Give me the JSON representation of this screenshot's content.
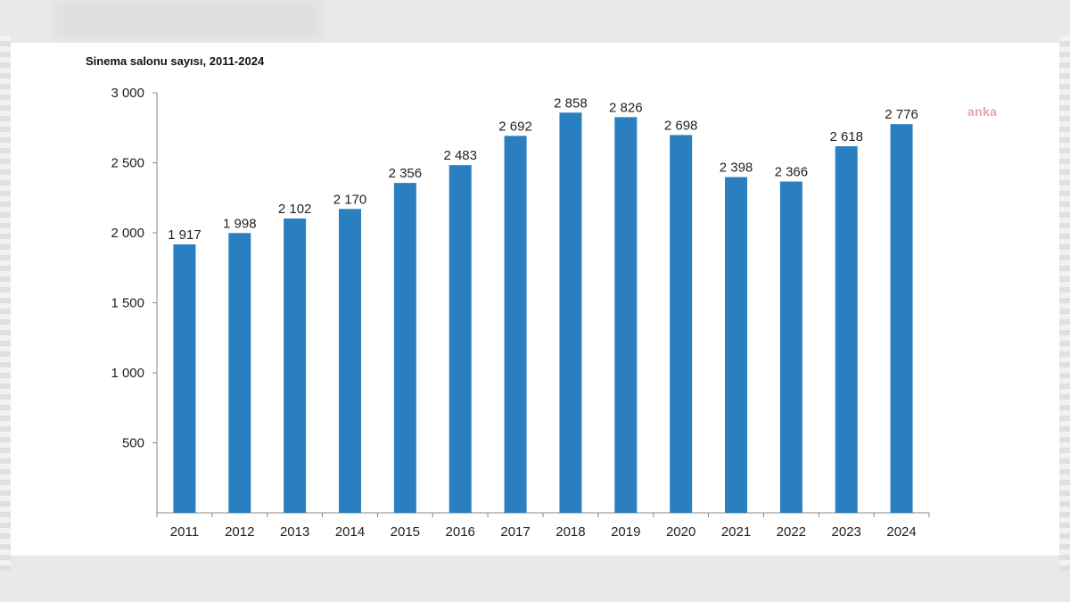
{
  "watermark": "anka",
  "chart_data": {
    "type": "bar",
    "title": "Sinema salonu sayısı, 2011-2024",
    "categories": [
      "2011",
      "2012",
      "2013",
      "2014",
      "2015",
      "2016",
      "2017",
      "2018",
      "2019",
      "2020",
      "2021",
      "2022",
      "2023",
      "2024"
    ],
    "values": [
      1917,
      1998,
      2102,
      2170,
      2356,
      2483,
      2692,
      2858,
      2826,
      2698,
      2398,
      2366,
      2618,
      2776
    ],
    "value_labels": [
      "1 917",
      "1 998",
      "2 102",
      "2 170",
      "2 356",
      "2 483",
      "2 692",
      "2 858",
      "2 826",
      "2 698",
      "2 398",
      "2 366",
      "2 618",
      "2 776"
    ],
    "yticks": [
      500,
      1000,
      1500,
      2000,
      2500,
      3000
    ],
    "ytick_labels": [
      "500",
      "1 000",
      "1 500",
      "2 000",
      "2 500",
      "3 000"
    ],
    "ylim": [
      0,
      3000
    ],
    "xlabel": "",
    "ylabel": "",
    "grid": false,
    "bar_color": "#2a7fc1"
  }
}
